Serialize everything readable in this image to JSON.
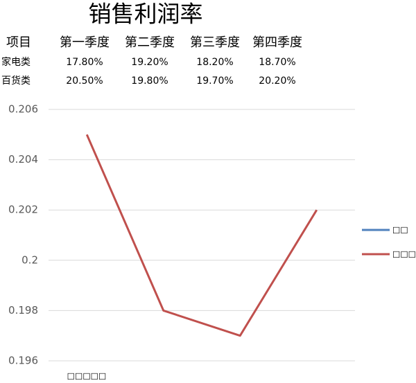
{
  "title": "销售利润率",
  "table": {
    "header": [
      "项目",
      "第一季度",
      "第二季度",
      "第三季度",
      "第四季度"
    ],
    "rows": [
      [
        "家电类",
        "17.80%",
        "19.20%",
        "18.20%",
        "18.70%"
      ],
      [
        "百货类",
        "20.50%",
        "19.80%",
        "19.70%",
        "20.20%"
      ]
    ]
  },
  "chart_data": {
    "type": "line",
    "categories": [
      null,
      null,
      null,
      null
    ],
    "x_label": "□□□□□",
    "series": [
      {
        "name": "□□",
        "color": "#4f81bd",
        "values": [
          null,
          null,
          null,
          null
        ]
      },
      {
        "name": "□□□",
        "color": "#c0504d",
        "values": [
          0.205,
          0.198,
          0.197,
          0.202
        ]
      }
    ],
    "ylim": [
      0.196,
      0.206
    ],
    "yticks": [
      0.196,
      0.198,
      0.2,
      0.202,
      0.204,
      0.206
    ],
    "grid": true,
    "legend": "right"
  }
}
